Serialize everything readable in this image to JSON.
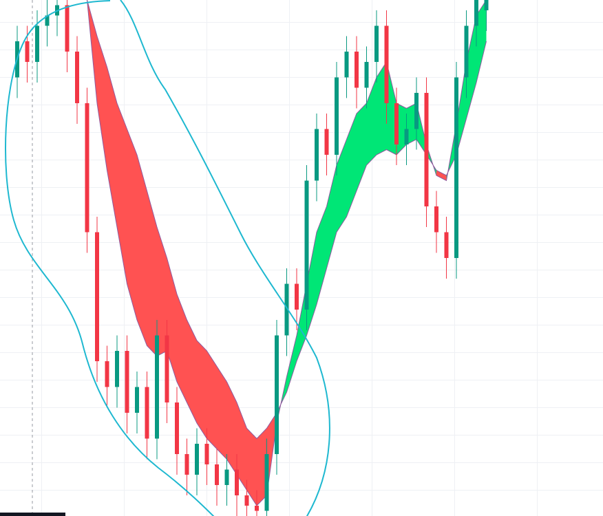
{
  "chart_data": {
    "type": "candlestick",
    "x": [
      0,
      1,
      2,
      3,
      4,
      5,
      6,
      7,
      8,
      9,
      10,
      11,
      12,
      13,
      14,
      15,
      16,
      17,
      18,
      19,
      20,
      21,
      22,
      23,
      24,
      25,
      26,
      27,
      28,
      29,
      30,
      31,
      32,
      33,
      34,
      35,
      36,
      37,
      38,
      39,
      40,
      41,
      42,
      43,
      44,
      45,
      46,
      47
    ],
    "open": [
      85,
      92,
      88,
      95,
      97,
      99,
      90,
      80,
      55,
      30,
      25,
      32,
      20,
      25,
      15,
      35,
      22,
      12,
      8,
      14,
      10,
      6,
      9,
      4,
      2,
      1,
      12,
      35,
      45,
      40,
      65,
      75,
      70,
      85,
      90,
      83,
      88,
      95,
      80,
      72,
      75,
      82,
      60,
      55,
      50,
      85,
      95,
      98
    ],
    "high": [
      95,
      95,
      98,
      100,
      100,
      100,
      93,
      83,
      58,
      33,
      35,
      35,
      28,
      28,
      38,
      38,
      25,
      15,
      17,
      17,
      13,
      12,
      12,
      7,
      5,
      15,
      38,
      48,
      48,
      68,
      78,
      78,
      88,
      93,
      93,
      91,
      98,
      98,
      83,
      78,
      85,
      85,
      63,
      58,
      88,
      98,
      100,
      100
    ],
    "low": [
      81,
      84,
      84,
      91,
      93,
      86,
      76,
      51,
      26,
      21,
      21,
      16,
      16,
      11,
      11,
      18,
      8,
      4,
      4,
      6,
      2,
      2,
      0,
      0,
      0,
      0,
      8,
      31,
      36,
      36,
      61,
      66,
      66,
      81,
      79,
      79,
      84,
      76,
      68,
      68,
      71,
      56,
      51,
      46,
      46,
      81,
      91,
      94
    ],
    "close": [
      92,
      88,
      95,
      97,
      99,
      90,
      80,
      55,
      30,
      25,
      32,
      20,
      25,
      15,
      35,
      22,
      12,
      8,
      14,
      10,
      6,
      9,
      4,
      2,
      1,
      12,
      35,
      45,
      40,
      65,
      75,
      70,
      85,
      90,
      83,
      88,
      95,
      80,
      72,
      75,
      82,
      60,
      55,
      50,
      85,
      95,
      100,
      100
    ],
    "ma_fast": [
      null,
      null,
      null,
      null,
      null,
      null,
      null,
      100,
      80,
      67,
      56,
      45,
      38,
      33,
      31,
      32,
      26,
      22,
      18,
      15,
      13,
      11,
      8,
      5,
      2,
      4,
      18,
      27,
      35,
      45,
      55,
      60,
      68,
      73,
      78,
      80,
      85,
      88,
      80,
      79,
      80,
      72,
      66,
      65,
      76,
      88,
      97,
      100
    ],
    "ma_slow": [
      null,
      null,
      null,
      null,
      null,
      null,
      null,
      100,
      93,
      87,
      80,
      75,
      70,
      63,
      56,
      50,
      43,
      38,
      34,
      32,
      29,
      26,
      22,
      17,
      15,
      17,
      20,
      24,
      30,
      35,
      41,
      48,
      55,
      58,
      63,
      68,
      70,
      71,
      70,
      72,
      73,
      70,
      67,
      66,
      70,
      77,
      84,
      92
    ],
    "xlim": [
      0,
      47
    ],
    "ylim": [
      0,
      100
    ],
    "up_color": "#089981",
    "down_color": "#f23645",
    "band_up_color": "#00e676",
    "band_down_color": "#ff5252"
  }
}
